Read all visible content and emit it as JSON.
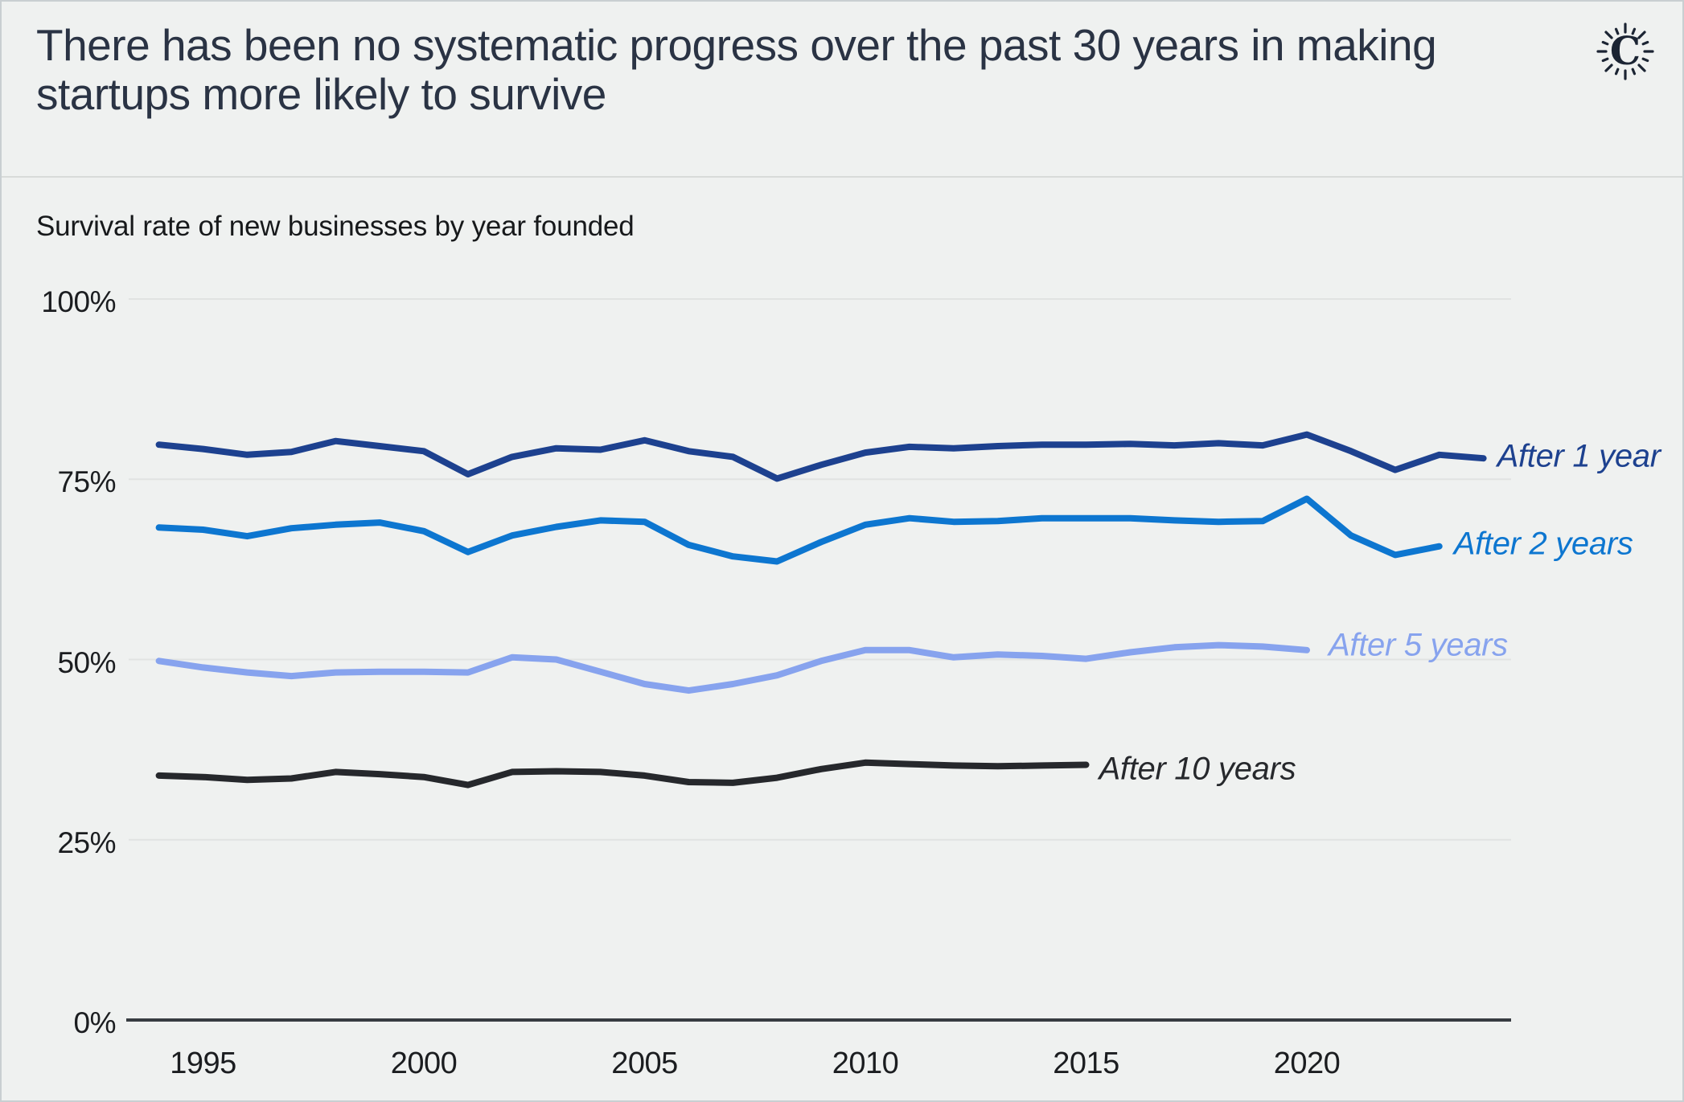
{
  "header": {
    "logo_letter": "C"
  },
  "chart_data": {
    "type": "line",
    "title": "There has been no systematic progress over the past 30 years in making startups more likely to survive",
    "subtitle": "Survival rate of new businesses by year founded",
    "xlabel": "",
    "ylabel": "",
    "ylim": [
      0,
      100
    ],
    "grid": "horizontal",
    "legend_position": "inline-right-of-lines",
    "background_color": "#eff1f0",
    "gridline_color": "#e1e3e2",
    "axis_color": "#373c41",
    "yticks": [
      {
        "label": "100%",
        "value": 100
      },
      {
        "label": "75%",
        "value": 75
      },
      {
        "label": "50%",
        "value": 50
      },
      {
        "label": "25%",
        "value": 25
      },
      {
        "label": "0%",
        "value": 0
      }
    ],
    "xticks": [
      1995,
      2000,
      2005,
      2010,
      2015,
      2020
    ],
    "series": [
      {
        "name": "After 1 year",
        "color": "#1d418f",
        "start_year": 1994,
        "end_year": 2024,
        "values": [
          79.8,
          79.2,
          78.4,
          78.8,
          80.3,
          79.6,
          78.9,
          75.7,
          78.1,
          79.3,
          79.1,
          80.4,
          78.9,
          78.1,
          75.1,
          77.0,
          78.7,
          79.5,
          79.3,
          79.6,
          79.8,
          79.8,
          79.9,
          79.7,
          80.0,
          79.7,
          81.2,
          78.9,
          76.3,
          78.4,
          77.9
        ]
      },
      {
        "name": "After 2 years",
        "color": "#0d76d0",
        "start_year": 1994,
        "end_year": 2023,
        "values": [
          68.3,
          68.0,
          67.1,
          68.2,
          68.7,
          69.0,
          67.8,
          64.9,
          67.2,
          68.4,
          69.3,
          69.1,
          65.9,
          64.3,
          63.6,
          66.3,
          68.7,
          69.6,
          69.1,
          69.2,
          69.6,
          69.6,
          69.6,
          69.3,
          69.1,
          69.2,
          72.3,
          67.2,
          64.5,
          65.7
        ]
      },
      {
        "name": "After 5 years",
        "color": "#87a3ee",
        "start_year": 1994,
        "end_year": 2020,
        "values": [
          49.8,
          48.9,
          48.2,
          47.7,
          48.2,
          48.3,
          48.3,
          48.2,
          50.3,
          50.0,
          48.3,
          46.6,
          45.7,
          46.6,
          47.8,
          49.8,
          51.3,
          51.3,
          50.3,
          50.7,
          50.5,
          50.1,
          51.0,
          51.7,
          52.0,
          51.8,
          51.3
        ]
      },
      {
        "name": "After 10 years",
        "color": "#26282c",
        "start_year": 1994,
        "end_year": 2015,
        "values": [
          33.9,
          33.7,
          33.3,
          33.5,
          34.4,
          34.1,
          33.7,
          32.6,
          34.4,
          34.5,
          34.4,
          33.9,
          33.0,
          32.9,
          33.6,
          34.8,
          35.7,
          35.5,
          35.3,
          35.2,
          35.3,
          35.4
        ]
      }
    ]
  }
}
